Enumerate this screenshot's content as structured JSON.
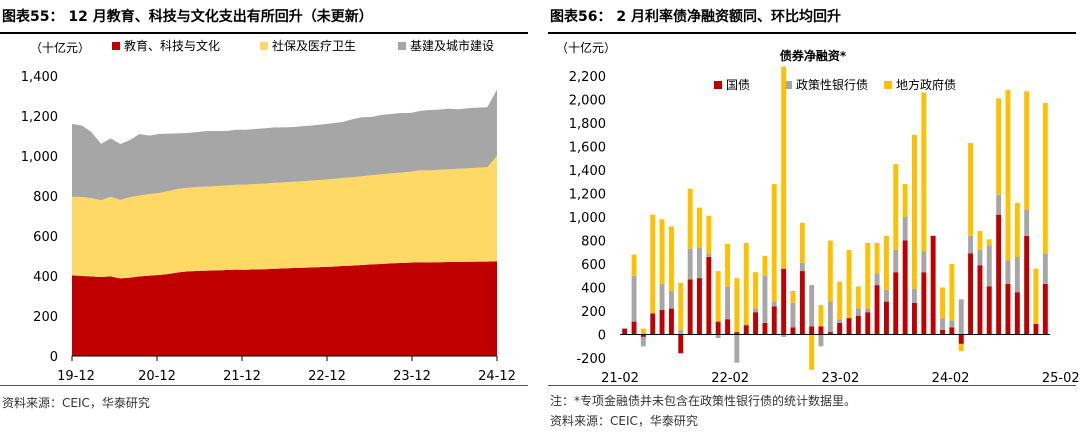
{
  "left": {
    "title": "图表55： 12 月教育、科技与文化支出有所回升（未更新）",
    "source": "资料来源：CEIC，华泰研究",
    "chart_data": {
      "type": "area",
      "stacked": true,
      "unit_label": "（十亿元）",
      "ylim": [
        0,
        1400
      ],
      "yticks": [
        0,
        200,
        400,
        600,
        800,
        1000,
        1200,
        1400
      ],
      "ytick_labels": [
        "0",
        "200",
        "400",
        "600",
        "800",
        "1,000",
        "1,200",
        "1,400"
      ],
      "xtick_labels": [
        "19-12",
        "20-12",
        "21-12",
        "22-12",
        "23-12",
        "24-12"
      ],
      "legend_position": "top",
      "series": [
        {
          "name": "教育、科技与文化",
          "color": "#c00000",
          "values": [
            403,
            400,
            398,
            395,
            398,
            388,
            392,
            398,
            402,
            405,
            410,
            418,
            423,
            425,
            427,
            428,
            430,
            432,
            431,
            433,
            434,
            436,
            438,
            440,
            441,
            443,
            445,
            447,
            450,
            452,
            455,
            458,
            460,
            463,
            465,
            467,
            469,
            468,
            469,
            470,
            470,
            471,
            472,
            472,
            474
          ]
        },
        {
          "name": "社保及医疗卫生",
          "color": "#ffd966",
          "values": [
            393,
            395,
            392,
            384,
            398,
            392,
            402,
            404,
            408,
            410,
            415,
            418,
            418,
            420,
            420,
            422,
            423,
            424,
            426,
            427,
            428,
            430,
            430,
            432,
            433,
            435,
            436,
            438,
            440,
            442,
            444,
            446,
            448,
            450,
            452,
            454,
            459,
            460,
            462,
            464,
            466,
            468,
            470,
            472,
            526
          ]
        },
        {
          "name": "基建及城市建设",
          "color": "#a6a6a6",
          "values": [
            364,
            358,
            330,
            282,
            292,
            280,
            286,
            308,
            292,
            295,
            287,
            277,
            274,
            275,
            278,
            275,
            272,
            275,
            274,
            275,
            277,
            277,
            275,
            273,
            276,
            275,
            277,
            279,
            280,
            290,
            295,
            291,
            297,
            297,
            298,
            294,
            297,
            302,
            301,
            302,
            298,
            300,
            300,
            300,
            332
          ]
        }
      ]
    }
  },
  "right": {
    "title": "图表56： 2 月利率债净融资额同、环比均回升",
    "note": "注：*专项金融债并未包含在政策性银行债的统计数据里。",
    "source": "资料来源：CEIC，华泰研究",
    "chart_data": {
      "type": "bar",
      "stacked": true,
      "title": "债券净融资*",
      "unit_label": "（十亿元）",
      "ylim": [
        -200,
        2200
      ],
      "yticks": [
        -200,
        0,
        200,
        400,
        600,
        800,
        1000,
        1200,
        1400,
        1600,
        1800,
        2000,
        2200
      ],
      "ytick_labels": [
        "-200",
        "0",
        "200",
        "400",
        "600",
        "800",
        "1,000",
        "1,200",
        "1,400",
        "1,600",
        "1,800",
        "2,000",
        "2,200"
      ],
      "xtick_labels": [
        "21-02",
        "22-02",
        "23-02",
        "24-02",
        "25-02"
      ],
      "legend_position": "top",
      "series": [
        {
          "name": "国债",
          "color": "#c00000",
          "values": [
            50,
            110,
            -20,
            180,
            210,
            220,
            -160,
            470,
            480,
            660,
            110,
            130,
            20,
            80,
            190,
            100,
            240,
            560,
            60,
            540,
            70,
            70,
            20,
            100,
            140,
            160,
            190,
            420,
            280,
            530,
            800,
            270,
            530,
            840,
            40,
            60,
            -80,
            690,
            590,
            410,
            1020,
            430,
            360,
            840,
            90,
            430
          ]
        },
        {
          "name": "政策性银行债",
          "color": "#a6a6a6",
          "values": [
            0,
            390,
            -80,
            0,
            220,
            150,
            40,
            260,
            260,
            30,
            -30,
            280,
            -240,
            0,
            30,
            400,
            40,
            -20,
            210,
            70,
            350,
            -100,
            260,
            30,
            0,
            60,
            30,
            100,
            100,
            190,
            200,
            120,
            180,
            0,
            100,
            60,
            300,
            150,
            130,
            350,
            170,
            200,
            300,
            220,
            0,
            260
          ]
        },
        {
          "name": "地方政府债",
          "color": "#ffc000",
          "values": [
            0,
            180,
            50,
            840,
            550,
            550,
            400,
            510,
            340,
            320,
            430,
            360,
            460,
            700,
            310,
            170,
            1000,
            1720,
            100,
            340,
            -300,
            180,
            520,
            320,
            580,
            190,
            560,
            260,
            460,
            730,
            280,
            1310,
            1350,
            0,
            260,
            480,
            -60,
            790,
            160,
            50,
            820,
            1450,
            460,
            1010,
            470,
            1280
          ]
        }
      ]
    }
  }
}
